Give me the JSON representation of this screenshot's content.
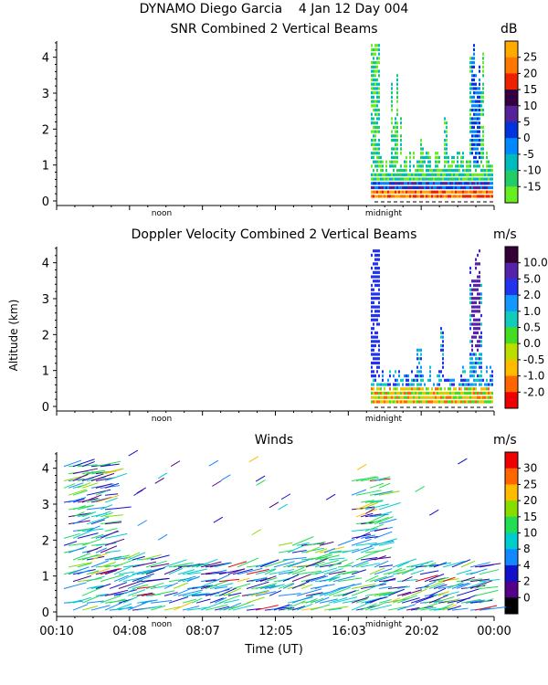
{
  "header": {
    "title": "DYNAMO Diego Garcia",
    "date": "4 Jan 12 Day 004"
  },
  "panels": [
    {
      "id": "snr",
      "title": "SNR Combined 2 Vertical Beams",
      "unit": "dB",
      "colorbar": {
        "labels": [
          "25",
          "20",
          "15",
          "10",
          "5",
          "0",
          "-5",
          "-10",
          "-15"
        ],
        "colors": [
          "#ffaa00",
          "#ff7700",
          "#ee2200",
          "#330044",
          "#552299",
          "#0033dd",
          "#0088ff",
          "#00bbbb",
          "#22cc66",
          "#66ee22"
        ]
      }
    },
    {
      "id": "doppler",
      "title": "Doppler Velocity Combined 2 Vertical Beams",
      "unit": "m/s",
      "colorbar": {
        "labels": [
          "10.0",
          "5.0",
          "2.0",
          "1.0",
          "0.5",
          "0.0",
          "-0.5",
          "-1.0",
          "-2.0"
        ],
        "colors": [
          "#330033",
          "#5522aa",
          "#2233ee",
          "#1199ff",
          "#11ccbb",
          "#44dd22",
          "#bbdd00",
          "#ffbb00",
          "#ff6600",
          "#ee0000"
        ]
      }
    },
    {
      "id": "winds",
      "title": "Winds",
      "unit": "m/s",
      "colorbar": {
        "labels": [
          "30",
          "25",
          "20",
          "15",
          "10",
          "8",
          "4",
          "2",
          "0"
        ],
        "colors": [
          "#ee0000",
          "#ff6600",
          "#ffbb00",
          "#88dd00",
          "#22dd55",
          "#00cccc",
          "#1188ff",
          "#1111cc",
          "#550088",
          "#000000"
        ]
      }
    }
  ],
  "y_axis": {
    "label": "Altitude (km)",
    "ticks": [
      "0",
      "1",
      "2",
      "3",
      "4"
    ]
  },
  "x_axis": {
    "label": "Time (UT)",
    "ticks": [
      "00:10",
      "04:08",
      "08:07",
      "12:05",
      "16:03",
      "20:02",
      "00:00"
    ],
    "markers": [
      "noon",
      "midnight"
    ]
  },
  "chart_data": [
    {
      "type": "heatmap",
      "title": "SNR Combined 2 Vertical Beams",
      "colorbar_unit": "dB",
      "colorbar_range": [
        -15,
        25
      ],
      "xlabel": "",
      "ylabel": "Altitude (km)",
      "ylim": [
        0,
        4.5
      ],
      "note": "data present only after ~19:00 UT; strong returns below 0.5 km; tall plume near 23:00 UT"
    },
    {
      "type": "heatmap",
      "title": "Doppler Velocity Combined 2 Vertical Beams",
      "colorbar_unit": "m/s",
      "colorbar_range": [
        -2.0,
        10.0
      ],
      "xlabel": "",
      "ylabel": "Altitude (km)",
      "ylim": [
        0,
        4.5
      ],
      "note": "data present only after ~19:00 UT"
    },
    {
      "type": "scatter",
      "title": "Winds",
      "colorbar_unit": "m/s",
      "colorbar_range": [
        0,
        30
      ],
      "xlabel": "Time (UT)",
      "ylabel": "Altitude (km)",
      "ylim": [
        0,
        4.5
      ],
      "x_ticks": [
        "00:10",
        "04:08",
        "08:07",
        "12:05",
        "16:03",
        "20:02",
        "00:00"
      ],
      "note": "wind barbs, mostly 8-15 m/s below 2.5 km"
    }
  ]
}
